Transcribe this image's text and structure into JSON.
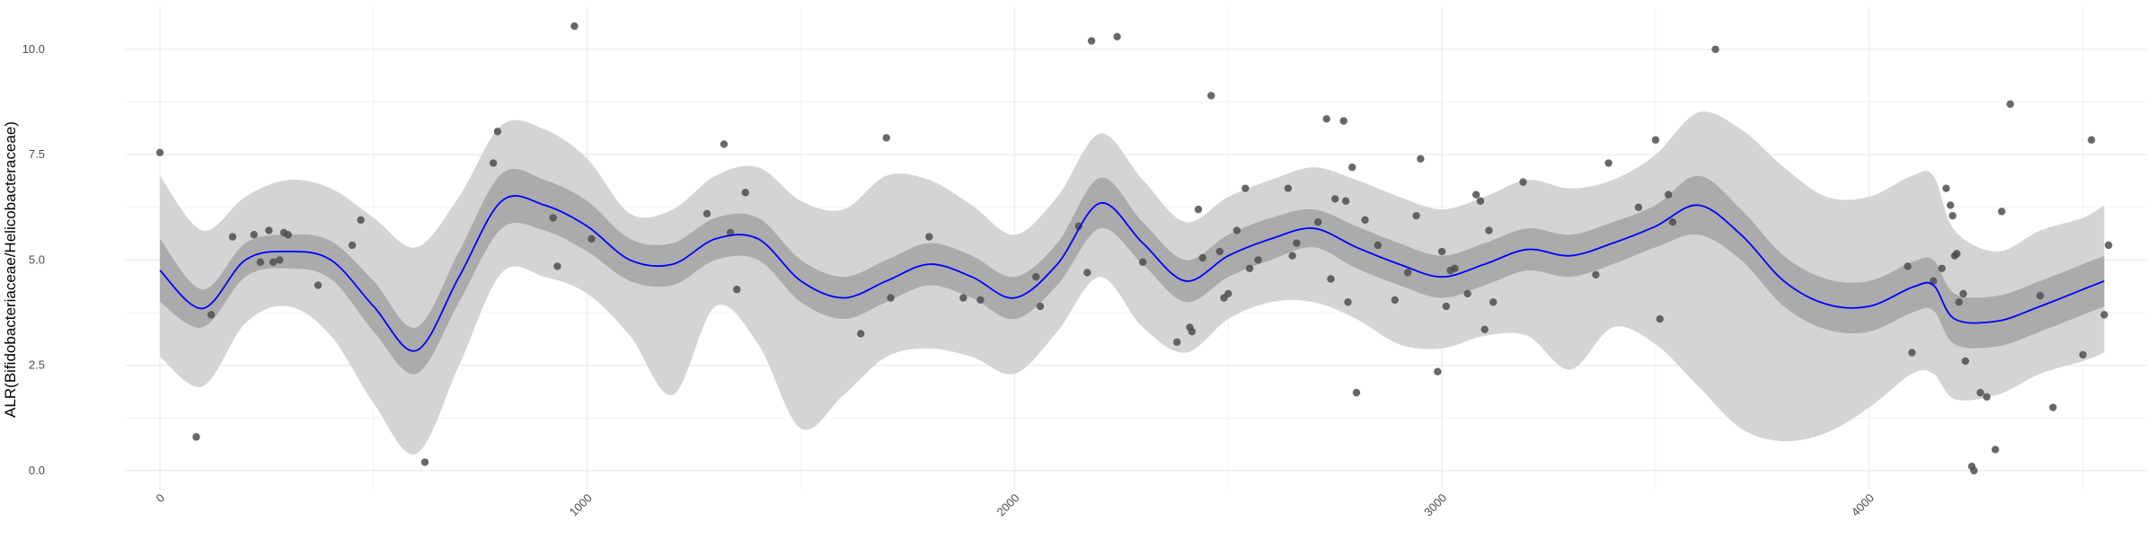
{
  "chart_data": {
    "type": "scatter",
    "title": "",
    "xlabel": "",
    "ylabel": "ALR(Bifidobacteriaceae/Helicobacteraceae)",
    "xlim": [
      -80,
      4650
    ],
    "ylim": [
      -0.45,
      11.0
    ],
    "x_ticks": [
      0,
      1000,
      2000,
      3000,
      4000
    ],
    "x_tick_labels": [
      "0",
      "1000",
      "2000",
      "3000",
      "4000"
    ],
    "y_ticks": [
      0.0,
      2.5,
      5.0,
      7.5,
      10.0
    ],
    "y_tick_labels": [
      "0.0",
      "2.5",
      "5.0",
      "7.5",
      "10.0"
    ],
    "grid": true,
    "colors": {
      "trend": "#0000ff",
      "ci_inner": "#ababab",
      "ci_outer": "#d4d4d4",
      "points": "#4d4d4d",
      "grid_major": "#ebebeb",
      "grid_minor": "#f4f4f4"
    },
    "trend_line": {
      "x": [
        0,
        100,
        200,
        300,
        400,
        500,
        600,
        700,
        800,
        900,
        1000,
        1100,
        1200,
        1300,
        1400,
        1500,
        1600,
        1700,
        1800,
        1900,
        2000,
        2100,
        2200,
        2300,
        2400,
        2500,
        2600,
        2700,
        2800,
        2900,
        3000,
        3100,
        3200,
        3300,
        3400,
        3500,
        3600,
        3700,
        3800,
        3900,
        4000,
        4100,
        4150,
        4200,
        4300,
        4400,
        4500,
        4550
      ],
      "y": [
        4.75,
        3.85,
        5.0,
        5.2,
        5.0,
        3.9,
        2.85,
        4.6,
        6.4,
        6.3,
        5.8,
        5.0,
        4.9,
        5.5,
        5.5,
        4.5,
        4.1,
        4.5,
        4.9,
        4.6,
        4.1,
        4.9,
        6.35,
        5.4,
        4.5,
        5.1,
        5.5,
        5.75,
        5.3,
        4.9,
        4.6,
        4.9,
        5.25,
        5.1,
        5.4,
        5.8,
        6.3,
        5.6,
        4.5,
        3.95,
        3.9,
        4.35,
        4.4,
        3.6,
        3.55,
        3.9,
        4.3,
        4.5
      ]
    },
    "ci_inner": {
      "upper": [
        5.5,
        4.3,
        5.4,
        5.6,
        5.45,
        4.5,
        3.4,
        5.2,
        7.05,
        6.9,
        6.4,
        5.5,
        5.4,
        6.0,
        6.0,
        5.0,
        4.6,
        5.0,
        5.4,
        5.1,
        4.6,
        5.4,
        6.95,
        5.9,
        5.0,
        5.6,
        6.0,
        6.2,
        5.8,
        5.4,
        5.1,
        5.4,
        5.75,
        5.6,
        5.9,
        6.3,
        7.0,
        6.2,
        5.1,
        4.55,
        4.5,
        4.95,
        5.0,
        4.2,
        4.15,
        4.5,
        4.9,
        5.1
      ],
      "lower": [
        4.0,
        3.4,
        4.6,
        4.8,
        4.55,
        3.3,
        2.3,
        4.0,
        5.75,
        5.7,
        5.2,
        4.5,
        4.4,
        5.0,
        5.0,
        4.0,
        3.6,
        4.0,
        4.4,
        4.1,
        3.6,
        4.4,
        5.75,
        4.9,
        4.0,
        4.6,
        5.0,
        5.3,
        4.8,
        4.4,
        4.1,
        4.4,
        4.75,
        4.6,
        4.9,
        5.3,
        5.6,
        5.0,
        3.9,
        3.35,
        3.3,
        3.75,
        3.8,
        3.0,
        2.95,
        3.3,
        3.7,
        3.9
      ]
    },
    "ci_outer": {
      "upper": [
        7.0,
        5.7,
        6.5,
        6.9,
        6.7,
        6.0,
        5.3,
        6.5,
        8.2,
        8.1,
        7.4,
        6.1,
        6.2,
        7.0,
        7.2,
        6.4,
        6.2,
        7.0,
        6.9,
        6.3,
        5.6,
        6.5,
        8.0,
        6.9,
        5.9,
        6.5,
        6.9,
        7.2,
        6.9,
        6.5,
        6.2,
        6.5,
        6.9,
        6.7,
        6.9,
        7.5,
        8.5,
        8.1,
        7.2,
        6.5,
        6.5,
        7.0,
        7.0,
        5.7,
        5.2,
        5.7,
        6.0,
        6.3
      ],
      "lower": [
        2.7,
        2.0,
        3.5,
        3.9,
        3.2,
        1.6,
        0.4,
        2.5,
        4.7,
        4.6,
        4.2,
        3.2,
        1.8,
        3.9,
        3.0,
        1.0,
        1.8,
        2.7,
        2.9,
        2.7,
        2.3,
        3.3,
        4.6,
        3.4,
        2.8,
        3.6,
        4.0,
        4.0,
        3.6,
        3.0,
        2.9,
        3.2,
        3.2,
        2.4,
        3.4,
        3.0,
        2.0,
        1.0,
        0.7,
        0.9,
        1.5,
        2.3,
        2.3,
        1.7,
        1.8,
        2.3,
        2.6,
        2.8
      ]
    },
    "points": [
      {
        "x": 0,
        "y": 7.55
      },
      {
        "x": 85,
        "y": 0.8
      },
      {
        "x": 120,
        "y": 3.7
      },
      {
        "x": 170,
        "y": 5.55
      },
      {
        "x": 220,
        "y": 5.6
      },
      {
        "x": 235,
        "y": 4.95
      },
      {
        "x": 255,
        "y": 5.7
      },
      {
        "x": 265,
        "y": 4.95
      },
      {
        "x": 280,
        "y": 5.0
      },
      {
        "x": 290,
        "y": 5.65
      },
      {
        "x": 300,
        "y": 5.6
      },
      {
        "x": 370,
        "y": 4.4
      },
      {
        "x": 450,
        "y": 5.35
      },
      {
        "x": 470,
        "y": 5.95
      },
      {
        "x": 620,
        "y": 0.2
      },
      {
        "x": 780,
        "y": 7.3
      },
      {
        "x": 790,
        "y": 8.05
      },
      {
        "x": 920,
        "y": 6.0
      },
      {
        "x": 930,
        "y": 4.85
      },
      {
        "x": 970,
        "y": 10.55
      },
      {
        "x": 1010,
        "y": 5.5
      },
      {
        "x": 1280,
        "y": 6.1
      },
      {
        "x": 1320,
        "y": 7.75
      },
      {
        "x": 1335,
        "y": 5.65
      },
      {
        "x": 1350,
        "y": 4.3
      },
      {
        "x": 1370,
        "y": 6.6
      },
      {
        "x": 1640,
        "y": 3.25
      },
      {
        "x": 1700,
        "y": 7.9
      },
      {
        "x": 1710,
        "y": 4.1
      },
      {
        "x": 1800,
        "y": 5.55
      },
      {
        "x": 1880,
        "y": 4.1
      },
      {
        "x": 1920,
        "y": 4.05
      },
      {
        "x": 2050,
        "y": 4.6
      },
      {
        "x": 2060,
        "y": 3.9
      },
      {
        "x": 2150,
        "y": 5.8
      },
      {
        "x": 2170,
        "y": 4.7
      },
      {
        "x": 2180,
        "y": 10.2
      },
      {
        "x": 2240,
        "y": 10.3
      },
      {
        "x": 2300,
        "y": 4.95
      },
      {
        "x": 2380,
        "y": 3.05
      },
      {
        "x": 2410,
        "y": 3.4
      },
      {
        "x": 2415,
        "y": 3.3
      },
      {
        "x": 2430,
        "y": 6.2
      },
      {
        "x": 2440,
        "y": 5.05
      },
      {
        "x": 2460,
        "y": 8.9
      },
      {
        "x": 2480,
        "y": 5.2
      },
      {
        "x": 2490,
        "y": 4.1
      },
      {
        "x": 2500,
        "y": 4.2
      },
      {
        "x": 2520,
        "y": 5.7
      },
      {
        "x": 2540,
        "y": 6.7
      },
      {
        "x": 2550,
        "y": 4.8
      },
      {
        "x": 2570,
        "y": 5.0
      },
      {
        "x": 2640,
        "y": 6.7
      },
      {
        "x": 2650,
        "y": 5.1
      },
      {
        "x": 2660,
        "y": 5.4
      },
      {
        "x": 2710,
        "y": 5.9
      },
      {
        "x": 2730,
        "y": 8.35
      },
      {
        "x": 2740,
        "y": 4.55
      },
      {
        "x": 2750,
        "y": 6.45
      },
      {
        "x": 2770,
        "y": 8.3
      },
      {
        "x": 2775,
        "y": 6.4
      },
      {
        "x": 2780,
        "y": 4.0
      },
      {
        "x": 2790,
        "y": 7.2
      },
      {
        "x": 2800,
        "y": 1.85
      },
      {
        "x": 2820,
        "y": 5.95
      },
      {
        "x": 2850,
        "y": 5.35
      },
      {
        "x": 2890,
        "y": 4.05
      },
      {
        "x": 2920,
        "y": 4.7
      },
      {
        "x": 2940,
        "y": 6.05
      },
      {
        "x": 2950,
        "y": 7.4
      },
      {
        "x": 2990,
        "y": 2.35
      },
      {
        "x": 3000,
        "y": 5.2
      },
      {
        "x": 3010,
        "y": 3.9
      },
      {
        "x": 3020,
        "y": 4.75
      },
      {
        "x": 3030,
        "y": 4.8
      },
      {
        "x": 3060,
        "y": 4.2
      },
      {
        "x": 3080,
        "y": 6.55
      },
      {
        "x": 3090,
        "y": 6.4
      },
      {
        "x": 3100,
        "y": 3.35
      },
      {
        "x": 3110,
        "y": 5.7
      },
      {
        "x": 3120,
        "y": 4.0
      },
      {
        "x": 3190,
        "y": 6.85
      },
      {
        "x": 3360,
        "y": 4.65
      },
      {
        "x": 3390,
        "y": 7.3
      },
      {
        "x": 3460,
        "y": 6.25
      },
      {
        "x": 3500,
        "y": 7.85
      },
      {
        "x": 3510,
        "y": 3.6
      },
      {
        "x": 3530,
        "y": 6.55
      },
      {
        "x": 3540,
        "y": 5.9
      },
      {
        "x": 3640,
        "y": 10.0
      },
      {
        "x": 4090,
        "y": 4.85
      },
      {
        "x": 4100,
        "y": 2.8
      },
      {
        "x": 4150,
        "y": 4.5
      },
      {
        "x": 4170,
        "y": 4.8
      },
      {
        "x": 4180,
        "y": 6.7
      },
      {
        "x": 4190,
        "y": 6.3
      },
      {
        "x": 4195,
        "y": 6.05
      },
      {
        "x": 4200,
        "y": 5.1
      },
      {
        "x": 4205,
        "y": 5.15
      },
      {
        "x": 4210,
        "y": 4.0
      },
      {
        "x": 4220,
        "y": 4.2
      },
      {
        "x": 4225,
        "y": 2.6
      },
      {
        "x": 4240,
        "y": 0.1
      },
      {
        "x": 4245,
        "y": 0.0
      },
      {
        "x": 4260,
        "y": 1.85
      },
      {
        "x": 4275,
        "y": 1.75
      },
      {
        "x": 4295,
        "y": 0.5
      },
      {
        "x": 4310,
        "y": 6.15
      },
      {
        "x": 4330,
        "y": 8.7
      },
      {
        "x": 4400,
        "y": 4.15
      },
      {
        "x": 4430,
        "y": 1.5
      },
      {
        "x": 4500,
        "y": 2.75
      },
      {
        "x": 4520,
        "y": 7.85
      },
      {
        "x": 4550,
        "y": 3.7
      },
      {
        "x": 4560,
        "y": 5.35
      }
    ]
  }
}
